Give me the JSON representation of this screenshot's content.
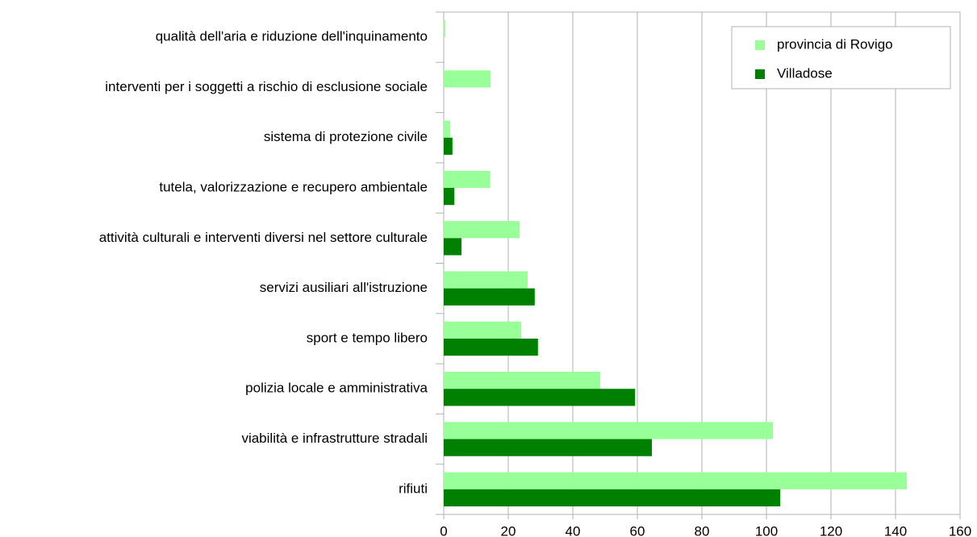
{
  "chart_data": {
    "type": "hbar",
    "categories": [
      "qualità dell'aria e riduzione dell'inquinamento",
      "interventi per i soggetti a rischio di esclusione sociale",
      "sistema di protezione civile",
      "tutela, valorizzazione e recupero ambientale",
      "attività culturali e interventi diversi nel settore culturale",
      "servizi ausiliari all'istruzione",
      "sport e tempo libero",
      "polizia locale e amministrativa",
      "viabilità e infrastrutture stradali",
      "rifiuti"
    ],
    "series": [
      {
        "name": "provincia di Rovigo",
        "color": "#99ff99",
        "values": [
          0.5,
          14.5,
          2,
          14.3,
          23.5,
          26,
          24,
          48.5,
          102,
          143.5
        ]
      },
      {
        "name": "Villadose",
        "color": "#008000",
        "values": [
          0,
          0,
          2.7,
          3.3,
          5.5,
          28.2,
          29.2,
          59.3,
          64.5,
          104.3
        ]
      }
    ],
    "xlim": [
      0,
      160
    ],
    "xticks": [
      0,
      20,
      40,
      60,
      80,
      100,
      120,
      140,
      160
    ],
    "grid": true,
    "legend": "top-right"
  }
}
